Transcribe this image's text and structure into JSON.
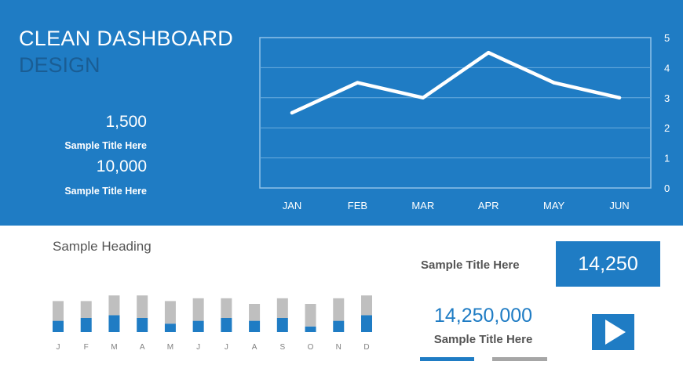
{
  "header": {
    "title_line1": "CLEAN DASHBOARD",
    "title_line2": "DESIGN"
  },
  "kpis": [
    {
      "value": "1,500",
      "label": "Sample Title Here"
    },
    {
      "value": "10,000",
      "label": "Sample Title Here"
    }
  ],
  "bottom": {
    "heading": "Sample Heading",
    "side_title": "Sample Title Here",
    "box_value": "14,250",
    "big_number": "14,250,000",
    "big_number_label": "Sample Title Here"
  },
  "colors": {
    "primary_blue": "#1f7cc4",
    "gray": "#bfbfbf",
    "text_gray": "#555555"
  },
  "icons": {
    "play": "play-icon"
  },
  "chart_data": [
    {
      "type": "line",
      "categories": [
        "JAN",
        "FEB",
        "MAR",
        "APR",
        "MAY",
        "JUN"
      ],
      "series": [
        {
          "values": [
            2.5,
            3.5,
            3.0,
            4.5,
            3.5,
            3.0
          ]
        }
      ],
      "yticks": [
        "0",
        "1",
        "2",
        "3",
        "4",
        "5"
      ],
      "ylim": [
        0,
        5
      ],
      "grid": true
    },
    {
      "type": "bar",
      "stacked": true,
      "categories": [
        "J",
        "F",
        "M",
        "A",
        "M",
        "J",
        "J",
        "A",
        "S",
        "O",
        "N",
        "D"
      ],
      "series": [
        {
          "color": "#1f7cc4",
          "values": [
            4,
            5,
            6,
            5,
            3,
            4,
            5,
            4,
            5,
            2,
            4,
            6
          ]
        },
        {
          "color": "#bfbfbf",
          "values": [
            7,
            6,
            7,
            8,
            8,
            8,
            7,
            6,
            7,
            8,
            8,
            7
          ]
        }
      ]
    }
  ]
}
